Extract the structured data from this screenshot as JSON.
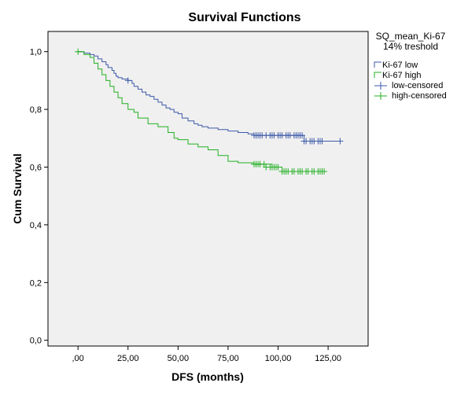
{
  "chart_data": {
    "type": "line",
    "title": "Survival Functions",
    "xlabel": "DFS (months)",
    "ylabel": "Cum Survival",
    "xlim": [
      -15,
      145
    ],
    "ylim": [
      -0.02,
      1.07
    ],
    "xticks": [
      0,
      25,
      50,
      75,
      100,
      125
    ],
    "xtick_labels": [
      ",00",
      "25,00",
      "50,00",
      "75,00",
      "100,00",
      "125,00"
    ],
    "yticks": [
      0.0,
      0.2,
      0.4,
      0.6,
      0.8,
      1.0
    ],
    "ytick_labels": [
      "0,0",
      "0,2",
      "0,4",
      "0,6",
      "0,8",
      "1,0"
    ],
    "grid": false,
    "background": "#f0f0f0",
    "legend": {
      "title_line1": "SQ_mean_Ki-67",
      "title_line2": "14% treshold",
      "position": "right",
      "entries": [
        "Ki-67 low",
        "Ki-67 high",
        "low-censored",
        "high-censored"
      ]
    },
    "series": [
      {
        "name": "Ki-67 low",
        "color": "#3c5aa8",
        "x": [
          0,
          3,
          6,
          8,
          10,
          12,
          14,
          15,
          17,
          18,
          19,
          20,
          22,
          25,
          27,
          28,
          30,
          32,
          34,
          36,
          38,
          40,
          42,
          44,
          46,
          48,
          50,
          52,
          55,
          58,
          60,
          62,
          65,
          70,
          75,
          80,
          85,
          88,
          113,
          131
        ],
        "y": [
          1.0,
          0.995,
          0.99,
          0.985,
          0.975,
          0.965,
          0.955,
          0.945,
          0.935,
          0.925,
          0.915,
          0.91,
          0.905,
          0.9,
          0.89,
          0.88,
          0.87,
          0.86,
          0.85,
          0.845,
          0.835,
          0.825,
          0.815,
          0.805,
          0.8,
          0.79,
          0.785,
          0.77,
          0.76,
          0.75,
          0.745,
          0.74,
          0.735,
          0.73,
          0.725,
          0.72,
          0.715,
          0.71,
          0.69,
          0.69
        ]
      },
      {
        "name": "Ki-67 high",
        "color": "#22b022",
        "x": [
          0,
          3,
          6,
          8,
          10,
          12,
          14,
          16,
          18,
          20,
          22,
          25,
          28,
          30,
          35,
          40,
          45,
          48,
          50,
          55,
          60,
          65,
          70,
          75,
          80,
          88,
          97,
          102,
          123
        ],
        "y": [
          1.0,
          0.99,
          0.98,
          0.96,
          0.94,
          0.92,
          0.9,
          0.88,
          0.86,
          0.84,
          0.82,
          0.8,
          0.79,
          0.77,
          0.75,
          0.74,
          0.72,
          0.7,
          0.695,
          0.68,
          0.67,
          0.66,
          0.64,
          0.62,
          0.615,
          0.61,
          0.6,
          0.585,
          0.585
        ]
      }
    ],
    "censored": [
      {
        "name": "low-censored",
        "color": "#3c5aa8",
        "x": [
          25,
          88,
          89,
          90,
          91,
          92,
          94,
          96,
          97,
          98,
          100,
          101,
          102,
          104,
          105,
          106,
          108,
          109,
          110,
          111,
          112,
          113,
          114,
          116,
          117,
          118,
          120,
          121,
          122,
          131
        ],
        "y": [
          0.9,
          0.71,
          0.71,
          0.71,
          0.71,
          0.71,
          0.71,
          0.71,
          0.71,
          0.71,
          0.71,
          0.71,
          0.71,
          0.71,
          0.71,
          0.71,
          0.71,
          0.71,
          0.71,
          0.71,
          0.71,
          0.69,
          0.69,
          0.69,
          0.69,
          0.69,
          0.69,
          0.69,
          0.69,
          0.69
        ]
      },
      {
        "name": "high-censored",
        "color": "#22b022",
        "x": [
          0,
          88,
          89,
          90,
          91,
          93,
          94,
          96,
          97,
          98,
          99,
          100,
          102,
          103,
          104,
          105,
          107,
          108,
          110,
          111,
          112,
          114,
          115,
          117,
          118,
          120,
          121,
          122,
          123
        ],
        "y": [
          1.0,
          0.61,
          0.61,
          0.61,
          0.61,
          0.61,
          0.6,
          0.6,
          0.6,
          0.6,
          0.6,
          0.6,
          0.585,
          0.585,
          0.585,
          0.585,
          0.585,
          0.585,
          0.585,
          0.585,
          0.585,
          0.585,
          0.585,
          0.585,
          0.585,
          0.585,
          0.585,
          0.585,
          0.585
        ]
      }
    ]
  }
}
